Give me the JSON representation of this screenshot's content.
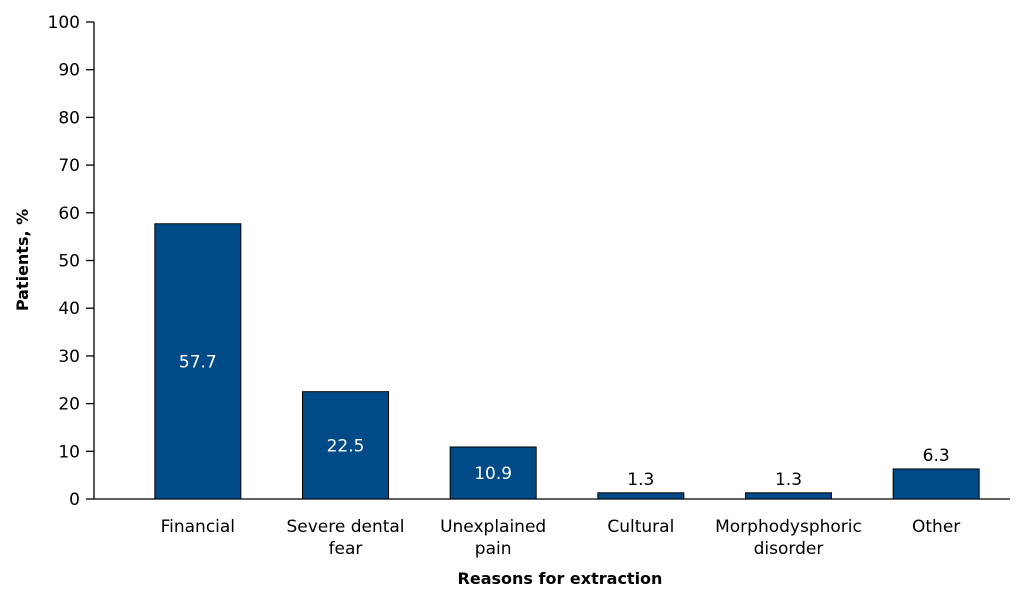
{
  "chart_data": {
    "type": "bar",
    "title": "",
    "xlabel": "Reasons for extraction",
    "ylabel": "Patients, %",
    "ylim": [
      0,
      100
    ],
    "yticks": [
      0,
      10,
      20,
      30,
      40,
      50,
      60,
      70,
      80,
      90,
      100
    ],
    "grid": false,
    "legend": "none",
    "categories": [
      [
        "Financial"
      ],
      [
        "Severe dental",
        "fear"
      ],
      [
        "Unexplained",
        "pain"
      ],
      [
        "Cultural"
      ],
      [
        "Morphodysphoric",
        "disorder"
      ],
      [
        "Other"
      ]
    ],
    "values": [
      57.7,
      22.5,
      10.9,
      1.3,
      1.3,
      6.3
    ],
    "data_labels": [
      "57.7",
      "22.5",
      "10.9",
      "1.3",
      "1.3",
      "6.3"
    ],
    "colors": {
      "bar_fill": "#004b87",
      "bar_stroke": "#000000",
      "label_inside": "#ffffff",
      "label_outside": "#000000",
      "axis": "#000000"
    }
  }
}
